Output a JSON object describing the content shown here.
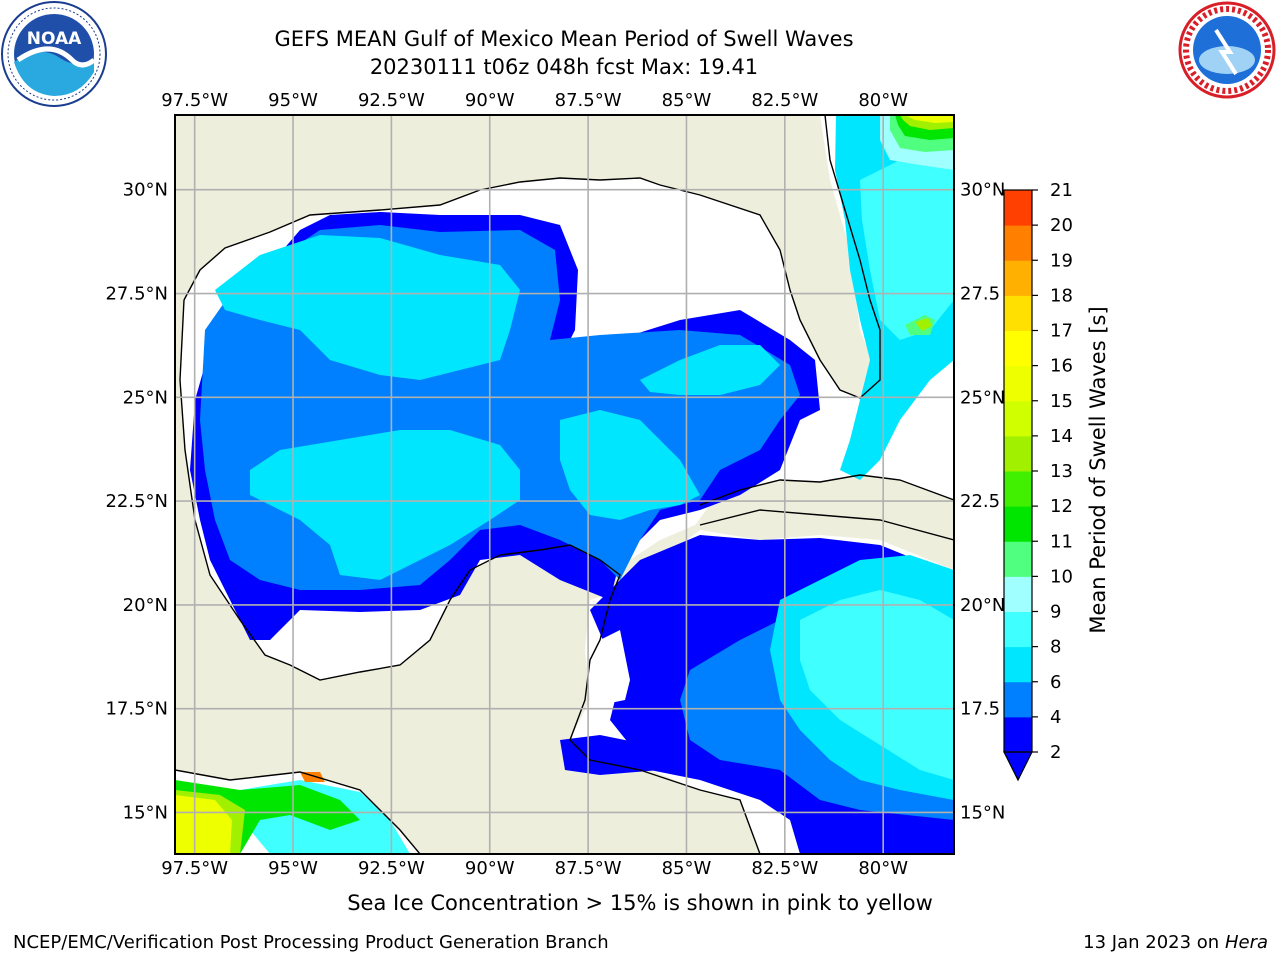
{
  "title": {
    "line1": "GEFS MEAN Gulf of Mexico Mean Period of Swell Waves",
    "line2": "20230111 t06z 048h fcst   Max: 19.41"
  },
  "map": {
    "lon_labels": [
      "97.5°W",
      "95°W",
      "92.5°W",
      "90°W",
      "87.5°W",
      "85°W",
      "82.5°W",
      "80°W"
    ],
    "lon_values": [
      -97.5,
      -95,
      -92.5,
      -90,
      -87.5,
      -85,
      -82.5,
      -80
    ],
    "lat_labels_left": [
      "30°N",
      "27.5°N",
      "25°N",
      "22.5°N",
      "20°N",
      "17.5°N",
      "15°N"
    ],
    "lat_labels_right": [
      "30°N",
      "27.5",
      "25°N",
      "22.5",
      "20°N",
      "17.5",
      "15°N"
    ],
    "lat_values": [
      30,
      27.5,
      25,
      22.5,
      20,
      17.5,
      15
    ],
    "lon_range": [
      -98,
      -78.2
    ],
    "lat_range": [
      14,
      31.8
    ],
    "grid": true,
    "land_color": "#eeeedd",
    "coastline_color": "#000000",
    "grid_color": "#b0b0b0"
  },
  "colorbar": {
    "label": "Mean Period of Swell Waves [s]",
    "tick_labels": [
      "2",
      "4",
      "6",
      "8",
      "9",
      "10",
      "11",
      "12",
      "13",
      "14",
      "15",
      "16",
      "17",
      "18",
      "19",
      "20",
      "21"
    ],
    "levels": [
      2,
      4,
      6,
      8,
      9,
      10,
      11,
      12,
      13,
      14,
      15,
      16,
      17,
      18,
      19,
      20,
      21
    ],
    "colors": [
      "#0000ff",
      "#0080ff",
      "#00e6ff",
      "#40ffff",
      "#a0ffff",
      "#50ff80",
      "#00e600",
      "#40f000",
      "#a0f000",
      "#d0ff00",
      "#eeff00",
      "#ffff00",
      "#ffe000",
      "#ffb000",
      "#ff8000",
      "#ff4000",
      "#ff0000"
    ],
    "extend": "min"
  },
  "footer": {
    "ice_note": "Sea Ice Concentration > 15% is shown in pink to yellow",
    "left": "NCEP/EMC/Verification Post Processing Product Generation Branch",
    "right_date": "13 Jan 2023 on ",
    "right_host": "Hera"
  },
  "logos": {
    "left": "noaa-logo",
    "right": "national-weather-service-logo"
  }
}
